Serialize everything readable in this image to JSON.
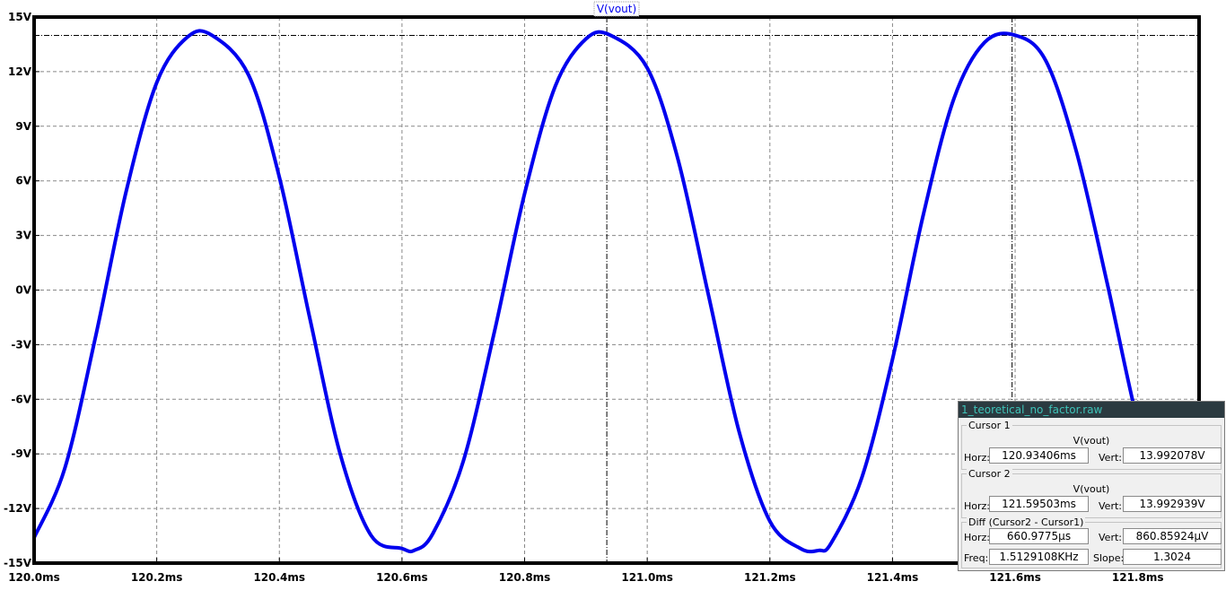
{
  "chart_data": {
    "type": "line",
    "trace_label": "V(vout)",
    "xlim": [
      120.0,
      121.9
    ],
    "ylim": [
      -15,
      15
    ],
    "x_ticks": [
      {
        "value": 120.0,
        "label": "120.0ms"
      },
      {
        "value": 120.2,
        "label": "120.2ms"
      },
      {
        "value": 120.4,
        "label": "120.4ms"
      },
      {
        "value": 120.6,
        "label": "120.6ms"
      },
      {
        "value": 120.8,
        "label": "120.8ms"
      },
      {
        "value": 121.0,
        "label": "121.0ms"
      },
      {
        "value": 121.2,
        "label": "121.2ms"
      },
      {
        "value": 121.4,
        "label": "121.4ms"
      },
      {
        "value": 121.6,
        "label": "121.6ms"
      },
      {
        "value": 121.8,
        "label": "121.8ms"
      }
    ],
    "y_ticks": [
      {
        "value": 15,
        "label": "15V"
      },
      {
        "value": 12,
        "label": "12V"
      },
      {
        "value": 9,
        "label": "9V"
      },
      {
        "value": 6,
        "label": "6V"
      },
      {
        "value": 3,
        "label": "3V"
      },
      {
        "value": 0,
        "label": "0V"
      },
      {
        "value": -3,
        "label": "-3V"
      },
      {
        "value": -6,
        "label": "-6V"
      },
      {
        "value": -9,
        "label": "-9V"
      },
      {
        "value": -12,
        "label": "-12V"
      },
      {
        "value": -15,
        "label": "-15V"
      }
    ],
    "grid": true,
    "series": [
      {
        "name": "V(vout)",
        "color": "#0000ee",
        "x": [
          120.0,
          120.05,
          120.1,
          120.15,
          120.2,
          120.25,
          120.29,
          120.35,
          120.4,
          120.45,
          120.5,
          120.55,
          120.6,
          120.62,
          120.65,
          120.7,
          120.75,
          120.8,
          120.85,
          120.9,
          120.94,
          121.0,
          121.05,
          121.1,
          121.15,
          121.2,
          121.25,
          121.28,
          121.3,
          121.35,
          121.4,
          121.45,
          121.5,
          121.55,
          121.6,
          121.65,
          121.7,
          121.75,
          121.8,
          121.81
        ],
        "y": [
          -13.6,
          -9.8,
          -2.6,
          5.4,
          11.4,
          13.9,
          14.0,
          11.8,
          6.2,
          -1.6,
          -9.1,
          -13.5,
          -14.2,
          -14.3,
          -13.4,
          -9.4,
          -2.4,
          5.3,
          11.2,
          13.8,
          14.0,
          12.2,
          7.2,
          -0.3,
          -7.8,
          -12.7,
          -14.2,
          -14.3,
          -13.9,
          -10.3,
          -3.8,
          4.1,
          10.5,
          13.6,
          14.0,
          12.6,
          7.6,
          0.4,
          -7.2,
          -6.2
        ]
      }
    ],
    "cursors": [
      {
        "x": 120.93406,
        "y": 13.992078
      },
      {
        "x": 121.59503,
        "y": 13.992939
      }
    ]
  },
  "cursor_panel": {
    "title": "1_teoretical_no_factor.raw",
    "cursor1": {
      "heading": "Cursor 1",
      "trace": "V(vout)",
      "horz_label": "Horz:",
      "horz_value": "120.93406ms",
      "vert_label": "Vert:",
      "vert_value": "13.992078V"
    },
    "cursor2": {
      "heading": "Cursor 2",
      "trace": "V(vout)",
      "horz_label": "Horz:",
      "horz_value": "121.59503ms",
      "vert_label": "Vert:",
      "vert_value": "13.992939V"
    },
    "diff": {
      "heading": "Diff (Cursor2 - Cursor1)",
      "horz_label": "Horz:",
      "horz_value": "660.9775µs",
      "vert_label": "Vert:",
      "vert_value": "860.85924µV",
      "freq_label": "Freq:",
      "freq_value": "1.5129108KHz",
      "slope_label": "Slope:",
      "slope_value": "1.3024"
    }
  }
}
